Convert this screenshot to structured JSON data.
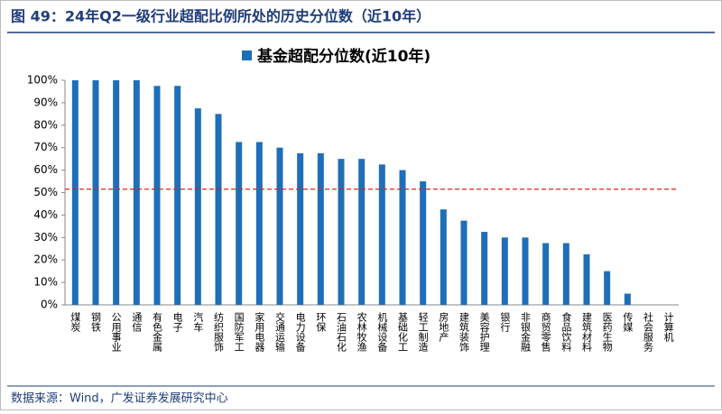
{
  "header": {
    "title": "图 49：24年Q2一级行业超配比例所处的历史分位数（近10年）"
  },
  "chart_data": {
    "type": "bar",
    "categories": [
      "煤炭",
      "钢铁",
      "公用事业",
      "通信",
      "有色金属",
      "电子",
      "汽车",
      "纺织服饰",
      "国防军工",
      "家用电器",
      "交通运输",
      "电力设备",
      "环保",
      "石油石化",
      "农林牧渔",
      "机械设备",
      "基础化工",
      "轻工制造",
      "房地产",
      "建筑装饰",
      "美容护理",
      "银行",
      "非银金融",
      "商贸零售",
      "食品饮料",
      "建筑材料",
      "医药生物",
      "传媒",
      "社会服务",
      "计算机"
    ],
    "series": [
      {
        "name": "基金超配分位数(近10年)",
        "color": "#1f6eb8",
        "values": [
          100,
          100,
          100,
          100,
          97.5,
          97.5,
          87.5,
          85,
          72.5,
          72.5,
          70,
          67.5,
          67.5,
          65,
          65,
          62.5,
          60,
          55,
          42.5,
          37.5,
          32.5,
          30,
          30,
          27.5,
          27.5,
          22.5,
          15,
          5,
          0,
          0
        ]
      }
    ],
    "ylim": [
      0,
      100
    ],
    "yticks": [
      {
        "value": 0,
        "label": "0%"
      },
      {
        "value": 10,
        "label": "10%"
      },
      {
        "value": 20,
        "label": "20%"
      },
      {
        "value": 30,
        "label": "30%"
      },
      {
        "value": 40,
        "label": "40%"
      },
      {
        "value": 50,
        "label": "50%"
      },
      {
        "value": 60,
        "label": "60%"
      },
      {
        "value": 70,
        "label": "70%"
      },
      {
        "value": 80,
        "label": "80%"
      },
      {
        "value": 90,
        "label": "90%"
      },
      {
        "value": 100,
        "label": "100%"
      }
    ],
    "reference_line": {
      "value": 51.5,
      "color": "#e02020"
    },
    "legend": "top"
  },
  "footer": {
    "source": "数据来源：Wind，广发证券发展研究中心"
  }
}
